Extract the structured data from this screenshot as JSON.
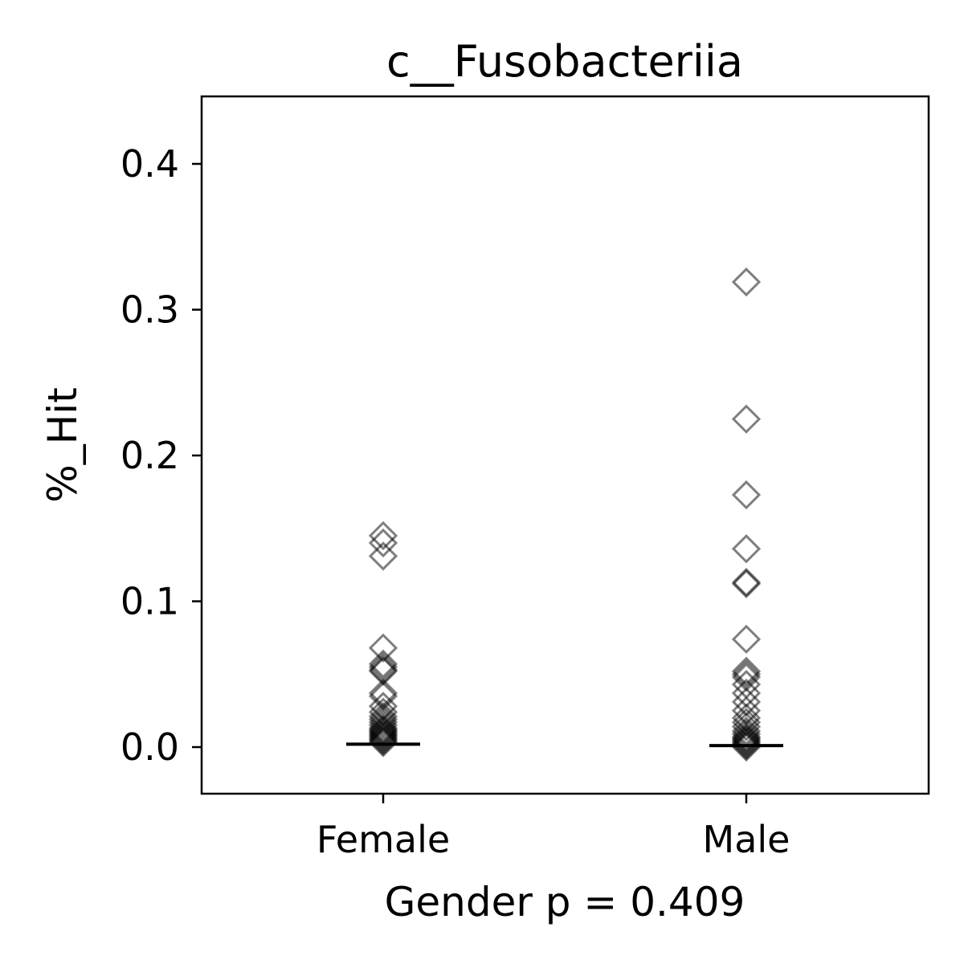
{
  "chart_data": {
    "type": "scatter",
    "title": "c__Fusobacteriia",
    "xlabel": "Gender p = 0.409",
    "ylabel": "%_Hit",
    "categories": [
      "Female",
      "Male"
    ],
    "ylim": [
      -0.031,
      0.445
    ],
    "yticks": [
      0.0,
      0.1,
      0.2,
      0.3,
      0.4
    ],
    "ytick_labels": [
      "0.0",
      "0.1",
      "0.2",
      "0.3",
      "0.4"
    ],
    "grid": false,
    "marker": "open-diamond",
    "marker_color": "#000000",
    "series": [
      {
        "category": "Female",
        "values": [
          0.145,
          0.14,
          0.131,
          0.068,
          0.057,
          0.055,
          0.053,
          0.052,
          0.037,
          0.035,
          0.028,
          0.024,
          0.021,
          0.019,
          0.017,
          0.015,
          0.013,
          0.012,
          0.011,
          0.01,
          0.009,
          0.008,
          0.007,
          0.006,
          0.005,
          0.004,
          0.003
        ],
        "median": 0.002
      },
      {
        "category": "Male",
        "values": [
          0.319,
          0.225,
          0.173,
          0.136,
          0.113,
          0.112,
          0.074,
          0.052,
          0.05,
          0.048,
          0.043,
          0.037,
          0.031,
          0.025,
          0.02,
          0.017,
          0.014,
          0.011,
          0.009,
          0.007,
          0.006,
          0.005,
          0.004,
          0.003,
          0.002,
          0.001,
          0.0
        ],
        "median": 0.001
      }
    ]
  }
}
